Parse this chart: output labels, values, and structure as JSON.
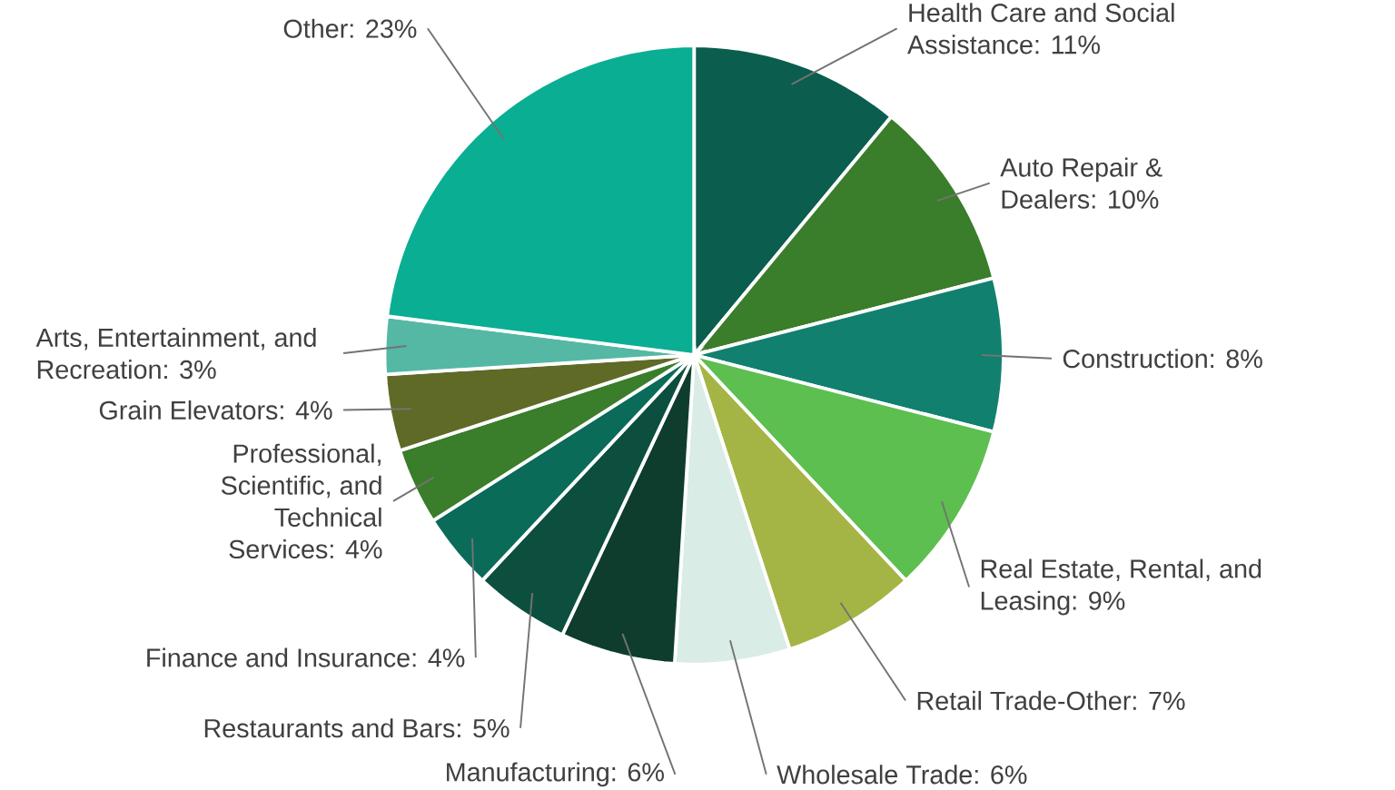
{
  "chart_data": {
    "type": "pie",
    "categories": [
      "Health Care and Social Assistance: 11%",
      "Auto Repair & Dealers: 10%",
      "Construction: 8%",
      "Real Estate, Rental, and Leasing: 9%",
      "Retail Trade-Other: 7%",
      "Wholesale Trade: 6%",
      "Manufacturing: 6%",
      "Restaurants and Bars: 5%",
      "Finance and Insurance: 4%",
      "Professional, Scientific, and Technical Services: 4%",
      "Grain Elevators: 4%",
      "Arts, Entertainment, and Recreation: 3%",
      "Other: 23%"
    ],
    "values": [
      11,
      10,
      8,
      9,
      7,
      6,
      6,
      5,
      4,
      4,
      4,
      3,
      23
    ],
    "colors": [
      "#0b5e4d",
      "#3a7d2a",
      "#12806e",
      "#5cbf4f",
      "#a5b545",
      "#d9ece6",
      "#0e3d2e",
      "#0d4f3f",
      "#0b6b59",
      "#3a7d2a",
      "#5e6a26",
      "#55b8a4",
      "#0aae93"
    ]
  }
}
